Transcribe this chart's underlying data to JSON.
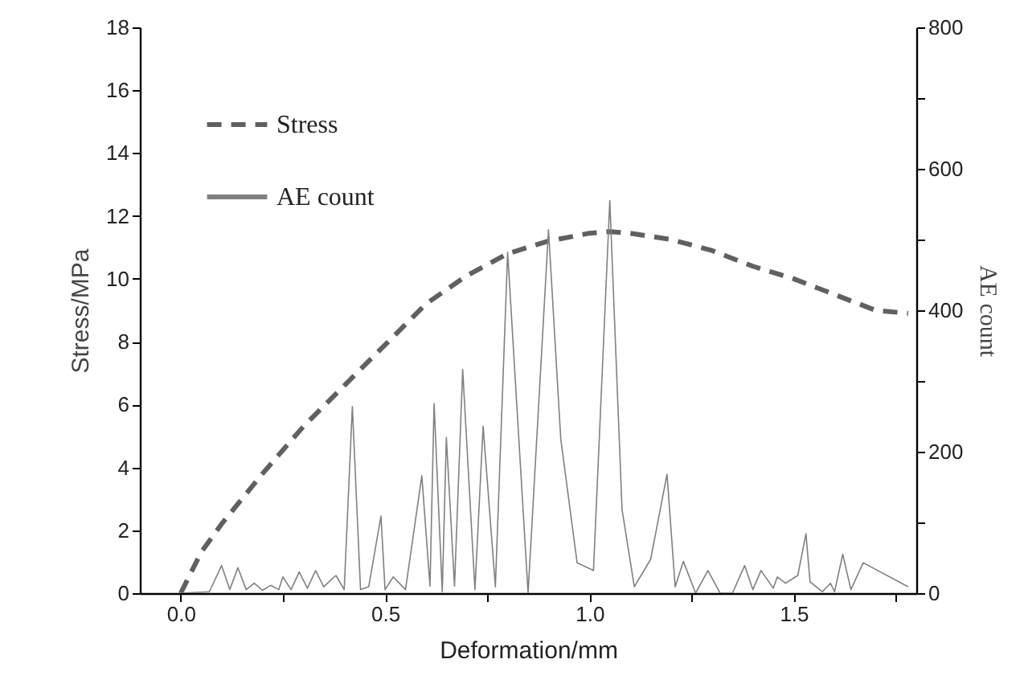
{
  "chart_data": {
    "type": "line",
    "xlabel": "Deformation/mm",
    "ylabel": "Stress/MPa",
    "y2label": "AE count",
    "xlim": [
      -0.1,
      1.8
    ],
    "xticks": [
      {
        "value": 0,
        "label": "0.0"
      },
      {
        "value": 0.25,
        "label": null
      },
      0.5,
      {
        "value": 0.75,
        "label": null
      },
      {
        "value": 1,
        "label": "1.0"
      },
      {
        "value": 1.25,
        "label": null
      },
      1.5,
      {
        "value": 1.75,
        "label": null
      }
    ],
    "ylim": [
      0,
      18
    ],
    "yticks": [
      0,
      2,
      4,
      6,
      8,
      10,
      12,
      14,
      16,
      18
    ],
    "y2lim": [
      0,
      800
    ],
    "y2ticks": [
      0,
      {
        "value": 100,
        "label": null
      },
      200,
      {
        "value": 300,
        "label": null
      },
      400,
      {
        "value": 500,
        "label": null
      },
      600,
      {
        "value": 700,
        "label": null
      },
      800
    ],
    "grid": false,
    "legend": "top left",
    "marker": "none",
    "series": [
      {
        "name": "Stress",
        "color": "#606060",
        "line_style": "dashed",
        "x": [
          0,
          0.05,
          0.1,
          0.2,
          0.3,
          0.4,
          0.5,
          0.6,
          0.7,
          0.8,
          0.9,
          1.0,
          1.05,
          1.1,
          1.2,
          1.3,
          1.4,
          1.5,
          1.6,
          1.7,
          1.78
        ],
        "values": [
          0,
          1.3,
          2.2,
          3.8,
          5.3,
          6.6,
          7.9,
          9.2,
          10.1,
          10.8,
          11.2,
          11.45,
          11.5,
          11.45,
          11.25,
          10.9,
          10.4,
          10.0,
          9.5,
          9.0,
          8.9
        ]
      },
      {
        "name": "AE count",
        "color": "#808080",
        "line_style": "solid",
        "axis": "y2",
        "x": [
          0,
          0.07,
          0.1,
          0.12,
          0.14,
          0.16,
          0.18,
          0.2,
          0.22,
          0.24,
          0.25,
          0.27,
          0.29,
          0.31,
          0.33,
          0.35,
          0.37,
          0.38,
          0.4,
          0.42,
          0.44,
          0.46,
          0.49,
          0.5,
          0.52,
          0.55,
          0.59,
          0.61,
          0.62,
          0.64,
          0.65,
          0.67,
          0.69,
          0.72,
          0.74,
          0.77,
          0.8,
          0.85,
          0.9,
          0.93,
          0.97,
          1.01,
          1.05,
          1.08,
          1.11,
          1.15,
          1.19,
          1.21,
          1.23,
          1.26,
          1.29,
          1.32,
          1.35,
          1.38,
          1.4,
          1.42,
          1.45,
          1.46,
          1.48,
          1.51,
          1.53,
          1.54,
          1.57,
          1.59,
          1.6,
          1.62,
          1.64,
          1.67,
          1.78
        ],
        "values": [
          0,
          2,
          39,
          5,
          36,
          5,
          14,
          4,
          11,
          5,
          23,
          5,
          30,
          7,
          32,
          9,
          20,
          25,
          5,
          264,
          5,
          9,
          109,
          5,
          23,
          5,
          166,
          10,
          268,
          2,
          220,
          10,
          316,
          5,
          236,
          9,
          482,
          0,
          514,
          218,
          43,
          32,
          555,
          118,
          9,
          48,
          168,
          9,
          45,
          0,
          32,
          0,
          0,
          39,
          5,
          32,
          7,
          23,
          14,
          25,
          84,
          16,
          2,
          14,
          2,
          55,
          5,
          43,
          9
        ]
      }
    ]
  }
}
